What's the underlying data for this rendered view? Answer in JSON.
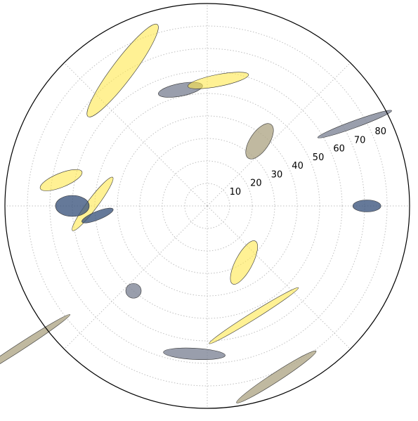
{
  "chart_data": {
    "type": "scatter",
    "projection": "polar",
    "theta_direction": "counterclockwise",
    "theta_zero": "east",
    "rlim": [
      0,
      90
    ],
    "r_ticks": [
      10,
      20,
      30,
      40,
      50,
      60,
      70,
      80
    ],
    "r_tick_labels": [
      "10",
      "20",
      "30",
      "40",
      "50",
      "60",
      "70",
      "80"
    ],
    "grid": true,
    "theta_grid_degrees": [
      0,
      45,
      90,
      135,
      180,
      225,
      270,
      315
    ],
    "colors": {
      "yellow": "#ffe74d",
      "slate": "#7f8697",
      "navy": "#3f5880",
      "khaki": "#b0a888",
      "edge": "#333333"
    },
    "ellipses": [
      {
        "theta": 179,
        "r": 51,
        "width": 95,
        "height": 15,
        "angle": -53,
        "color": "yellow",
        "alpha": 0.6
      },
      {
        "theta": 103,
        "r": 53,
        "width": 64,
        "height": 18,
        "angle": -11,
        "color": "slate",
        "alpha": 0.8
      },
      {
        "theta": 29,
        "r": 75,
        "width": 112,
        "height": 10,
        "angle": -20,
        "color": "slate",
        "alpha": 0.8
      },
      {
        "theta": 185,
        "r": 49,
        "width": 48,
        "height": 12,
        "angle": -22,
        "color": "navy",
        "alpha": 0.8
      },
      {
        "theta": 217,
        "r": 104,
        "width": 168,
        "height": 10,
        "angle": -33,
        "color": "khaki",
        "alpha": 0.8
      },
      {
        "theta": 122,
        "r": 71,
        "width": 164,
        "height": 30,
        "angle": -53,
        "color": "yellow",
        "alpha": 0.6
      },
      {
        "theta": 85,
        "r": 56,
        "width": 88,
        "height": 17,
        "angle": -11,
        "color": "yellow",
        "alpha": 0.6
      },
      {
        "theta": 51,
        "r": 37,
        "width": 58,
        "height": 27,
        "angle": -56,
        "color": "khaki",
        "alpha": 0.8
      },
      {
        "theta": 170,
        "r": 66,
        "width": 64,
        "height": 20,
        "angle": -22,
        "color": "yellow",
        "alpha": 0.6
      },
      {
        "theta": 180,
        "r": 60,
        "width": 48,
        "height": 30,
        "angle": 0,
        "color": "navy",
        "alpha": 0.8
      },
      {
        "theta": 229,
        "r": 50,
        "width": 22,
        "height": 21,
        "angle": 0,
        "color": "slate",
        "alpha": 0.8
      },
      {
        "theta": 265,
        "r": 66,
        "width": 88,
        "height": 16,
        "angle": 3,
        "color": "slate",
        "alpha": 0.8
      },
      {
        "theta": 303,
        "r": 30,
        "width": 69,
        "height": 24,
        "angle": -62,
        "color": "yellow",
        "alpha": 0.6
      },
      {
        "theta": 293,
        "r": 53,
        "width": 150,
        "height": 10,
        "angle": -32,
        "color": "yellow",
        "alpha": 0.6
      },
      {
        "theta": 0,
        "r": 71,
        "width": 40,
        "height": 17,
        "angle": 0,
        "color": "navy",
        "alpha": 0.8
      },
      {
        "theta": 292,
        "r": 82,
        "width": 135,
        "height": 13,
        "angle": -33,
        "color": "khaki",
        "alpha": 0.8
      }
    ]
  }
}
